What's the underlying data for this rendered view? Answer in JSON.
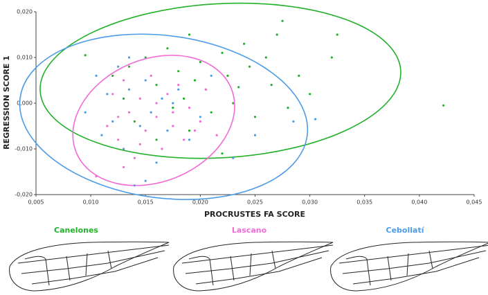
{
  "chart_data": {
    "type": "scatter",
    "xlabel": "PROCRUSTES FA SCORE",
    "ylabel": "REGRESSION SCORE 1",
    "xlim": [
      0.005,
      0.045
    ],
    "ylim": [
      -0.02,
      0.02
    ],
    "xticks": [
      {
        "value": 0.005,
        "label": "0,005"
      },
      {
        "value": 0.01,
        "label": "0,010"
      },
      {
        "value": 0.015,
        "label": "0,015"
      },
      {
        "value": 0.02,
        "label": "0,020"
      },
      {
        "value": 0.025,
        "label": "0,025"
      },
      {
        "value": 0.03,
        "label": "0,030"
      },
      {
        "value": 0.035,
        "label": "0,035"
      },
      {
        "value": 0.04,
        "label": "0,040"
      },
      {
        "value": 0.045,
        "label": "0,045"
      }
    ],
    "yticks": [
      {
        "value": -0.02,
        "label": "-0,020"
      },
      {
        "value": -0.01,
        "label": "-0,010"
      },
      {
        "value": 0.0,
        "label": "0,000"
      },
      {
        "value": 0.01,
        "label": "0,010"
      },
      {
        "value": 0.02,
        "label": "0,020"
      }
    ],
    "series": [
      {
        "name": "Canelones",
        "color": "#22b02a",
        "x": [
          0.0095,
          0.012,
          0.0135,
          0.015,
          0.016,
          0.017,
          0.018,
          0.0185,
          0.019,
          0.02,
          0.0205,
          0.021,
          0.022,
          0.0225,
          0.023,
          0.024,
          0.0245,
          0.025,
          0.026,
          0.0265,
          0.027,
          0.0275,
          0.028,
          0.029,
          0.03,
          0.032,
          0.0325,
          0.0422,
          0.014,
          0.016,
          0.019,
          0.022,
          0.013,
          0.0175,
          0.0235,
          0.0195
        ],
        "values": [
          0.0105,
          0.006,
          0.008,
          0.01,
          0.004,
          0.012,
          0.007,
          0.001,
          0.015,
          0.009,
          0.003,
          -0.002,
          0.011,
          0.006,
          0.0,
          0.013,
          0.008,
          -0.003,
          0.01,
          0.004,
          0.015,
          0.018,
          -0.001,
          0.006,
          0.002,
          0.01,
          0.015,
          -0.0005,
          -0.004,
          -0.008,
          -0.006,
          -0.011,
          0.001,
          -0.001,
          0.0035,
          0.005
        ]
      },
      {
        "name": "Lascano",
        "color": "#f06bd6",
        "x": [
          0.0105,
          0.0115,
          0.012,
          0.0125,
          0.013,
          0.0135,
          0.014,
          0.0145,
          0.015,
          0.0155,
          0.016,
          0.0165,
          0.017,
          0.0175,
          0.018,
          0.0185,
          0.019,
          0.02,
          0.0205,
          0.0215,
          0.013,
          0.0145,
          0.016,
          0.0175,
          0.0125,
          0.0195
        ],
        "values": [
          -0.016,
          -0.005,
          0.002,
          -0.008,
          0.005,
          -0.002,
          -0.012,
          0.001,
          -0.006,
          0.006,
          -0.003,
          -0.01,
          0.002,
          -0.005,
          0.004,
          -0.008,
          -0.001,
          -0.004,
          0.003,
          -0.007,
          -0.014,
          -0.009,
          0.0,
          -0.002,
          -0.003,
          -0.006
        ]
      },
      {
        "name": "Cebollatí",
        "color": "#4b9be6",
        "x": [
          0.0095,
          0.0105,
          0.011,
          0.0115,
          0.012,
          0.0125,
          0.013,
          0.0135,
          0.014,
          0.0145,
          0.015,
          0.0155,
          0.016,
          0.0165,
          0.017,
          0.018,
          0.019,
          0.02,
          0.021,
          0.023,
          0.025,
          0.0285,
          0.0305,
          0.0135,
          0.015,
          0.0175
        ],
        "values": [
          -0.002,
          0.006,
          -0.007,
          0.002,
          -0.004,
          0.008,
          -0.01,
          0.003,
          -0.018,
          -0.005,
          0.005,
          -0.002,
          -0.013,
          0.001,
          -0.006,
          0.003,
          -0.008,
          -0.003,
          0.006,
          -0.012,
          -0.007,
          -0.004,
          -0.0035,
          0.01,
          -0.017,
          0.0
        ]
      }
    ]
  }
}
